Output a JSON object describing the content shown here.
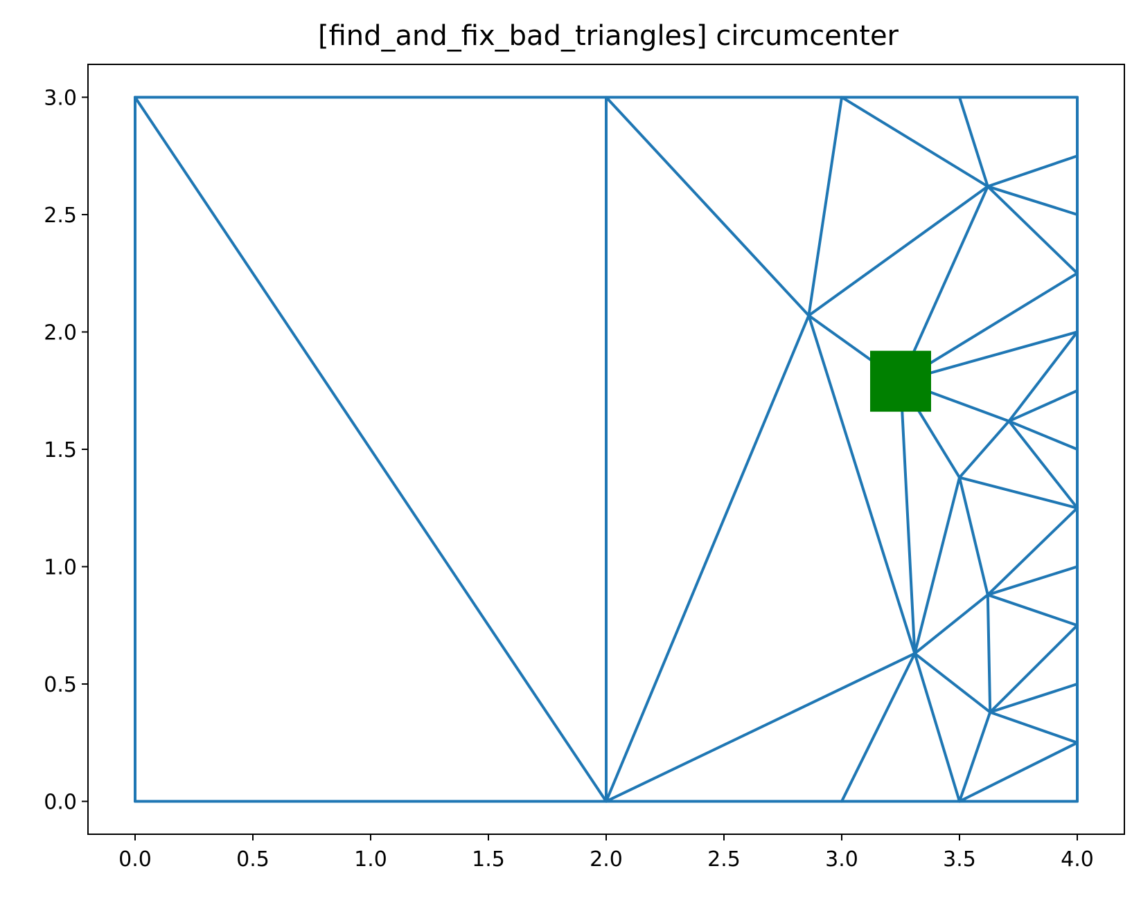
{
  "chart_data": {
    "type": "line",
    "title": "[find_and_fix_bad_triangles] circumcenter",
    "xlabel": "",
    "ylabel": "",
    "xlim": [
      -0.2,
      4.2
    ],
    "ylim": [
      -0.14,
      3.14
    ],
    "x_ticks": [
      "0.0",
      "0.5",
      "1.0",
      "1.5",
      "2.0",
      "2.5",
      "3.0",
      "3.5",
      "4.0"
    ],
    "x_tick_values": [
      0.0,
      0.5,
      1.0,
      1.5,
      2.0,
      2.5,
      3.0,
      3.5,
      4.0
    ],
    "y_ticks": [
      "0.0",
      "0.5",
      "1.0",
      "1.5",
      "2.0",
      "2.5",
      "3.0"
    ],
    "y_tick_values": [
      0.0,
      0.5,
      1.0,
      1.5,
      2.0,
      2.5,
      3.0
    ],
    "grid": false,
    "mesh_color": "#1f77b4",
    "marker_color": "#008000",
    "edges": [
      [
        [
          0,
          0
        ],
        [
          2,
          0
        ]
      ],
      [
        [
          2,
          0
        ],
        [
          3,
          0
        ]
      ],
      [
        [
          3,
          0
        ],
        [
          3.5,
          0
        ]
      ],
      [
        [
          3.5,
          0
        ],
        [
          4,
          0
        ]
      ],
      [
        [
          4,
          0
        ],
        [
          4,
          0.25
        ]
      ],
      [
        [
          4,
          0.25
        ],
        [
          4,
          0.5
        ]
      ],
      [
        [
          4,
          0.5
        ],
        [
          4,
          0.75
        ]
      ],
      [
        [
          4,
          0.75
        ],
        [
          4,
          1.0
        ]
      ],
      [
        [
          4,
          1.0
        ],
        [
          4,
          1.25
        ]
      ],
      [
        [
          4,
          1.25
        ],
        [
          4,
          1.5
        ]
      ],
      [
        [
          4,
          1.5
        ],
        [
          4,
          1.75
        ]
      ],
      [
        [
          4,
          1.75
        ],
        [
          4,
          2.0
        ]
      ],
      [
        [
          4,
          2.0
        ],
        [
          4,
          2.25
        ]
      ],
      [
        [
          4,
          2.25
        ],
        [
          4,
          2.5
        ]
      ],
      [
        [
          4,
          2.5
        ],
        [
          4,
          2.75
        ]
      ],
      [
        [
          4,
          2.75
        ],
        [
          4,
          3.0
        ]
      ],
      [
        [
          4,
          3.0
        ],
        [
          3.5,
          3.0
        ]
      ],
      [
        [
          3.5,
          3.0
        ],
        [
          3.0,
          3.0
        ]
      ],
      [
        [
          3.0,
          3.0
        ],
        [
          2.0,
          3.0
        ]
      ],
      [
        [
          2.0,
          3.0
        ],
        [
          0,
          3.0
        ]
      ],
      [
        [
          0,
          3.0
        ],
        [
          0,
          0
        ]
      ],
      [
        [
          0,
          3.0
        ],
        [
          2,
          0
        ]
      ],
      [
        [
          2,
          0
        ],
        [
          2,
          3.0
        ]
      ],
      [
        [
          2,
          3.0
        ],
        [
          2.86,
          2.07
        ]
      ],
      [
        [
          2.86,
          2.07
        ],
        [
          3.0,
          3.0
        ]
      ],
      [
        [
          2,
          0
        ],
        [
          2.86,
          2.07
        ]
      ],
      [
        [
          3.0,
          3.0
        ],
        [
          3.62,
          2.62
        ]
      ],
      [
        [
          3.5,
          3.0
        ],
        [
          3.62,
          2.62
        ]
      ],
      [
        [
          3.62,
          2.62
        ],
        [
          4,
          2.75
        ]
      ],
      [
        [
          3.62,
          2.62
        ],
        [
          4,
          2.5
        ]
      ],
      [
        [
          3.62,
          2.62
        ],
        [
          4,
          2.25
        ]
      ],
      [
        [
          2.86,
          2.07
        ],
        [
          3.62,
          2.62
        ]
      ],
      [
        [
          2.86,
          2.07
        ],
        [
          3.25,
          1.79
        ]
      ],
      [
        [
          3.25,
          1.79
        ],
        [
          3.62,
          2.62
        ]
      ],
      [
        [
          3.25,
          1.79
        ],
        [
          4,
          2.25
        ]
      ],
      [
        [
          3.25,
          1.79
        ],
        [
          4,
          2.0
        ]
      ],
      [
        [
          3.25,
          1.79
        ],
        [
          3.71,
          1.62
        ]
      ],
      [
        [
          3.25,
          1.79
        ],
        [
          3.5,
          1.38
        ]
      ],
      [
        [
          3.25,
          1.79
        ],
        [
          3.31,
          0.63
        ]
      ],
      [
        [
          2.86,
          2.07
        ],
        [
          3.31,
          0.63
        ]
      ],
      [
        [
          3.71,
          1.62
        ],
        [
          4,
          2.0
        ]
      ],
      [
        [
          3.71,
          1.62
        ],
        [
          4,
          1.75
        ]
      ],
      [
        [
          3.71,
          1.62
        ],
        [
          4,
          1.5
        ]
      ],
      [
        [
          3.71,
          1.62
        ],
        [
          4,
          1.25
        ]
      ],
      [
        [
          3.71,
          1.62
        ],
        [
          3.5,
          1.38
        ]
      ],
      [
        [
          3.5,
          1.38
        ],
        [
          4,
          1.25
        ]
      ],
      [
        [
          3.5,
          1.38
        ],
        [
          3.31,
          0.63
        ]
      ],
      [
        [
          3.5,
          1.38
        ],
        [
          3.62,
          0.88
        ]
      ],
      [
        [
          3.62,
          0.88
        ],
        [
          4,
          1.25
        ]
      ],
      [
        [
          3.62,
          0.88
        ],
        [
          4,
          1.0
        ]
      ],
      [
        [
          3.62,
          0.88
        ],
        [
          4,
          0.75
        ]
      ],
      [
        [
          3.62,
          0.88
        ],
        [
          3.63,
          0.38
        ]
      ],
      [
        [
          3.62,
          0.88
        ],
        [
          3.31,
          0.63
        ]
      ],
      [
        [
          3.31,
          0.63
        ],
        [
          2,
          0
        ]
      ],
      [
        [
          3.31,
          0.63
        ],
        [
          3.0,
          0
        ]
      ],
      [
        [
          3.31,
          0.63
        ],
        [
          3.5,
          0
        ]
      ],
      [
        [
          3.31,
          0.63
        ],
        [
          3.63,
          0.38
        ]
      ],
      [
        [
          3.63,
          0.38
        ],
        [
          4,
          0.75
        ]
      ],
      [
        [
          3.63,
          0.38
        ],
        [
          4,
          0.5
        ]
      ],
      [
        [
          3.63,
          0.38
        ],
        [
          4,
          0.25
        ]
      ],
      [
        [
          3.63,
          0.38
        ],
        [
          3.5,
          0
        ]
      ],
      [
        [
          3.5,
          0
        ],
        [
          4,
          0.25
        ]
      ]
    ],
    "markers": [
      {
        "x": 3.25,
        "y": 1.79,
        "shape": "square"
      }
    ]
  }
}
